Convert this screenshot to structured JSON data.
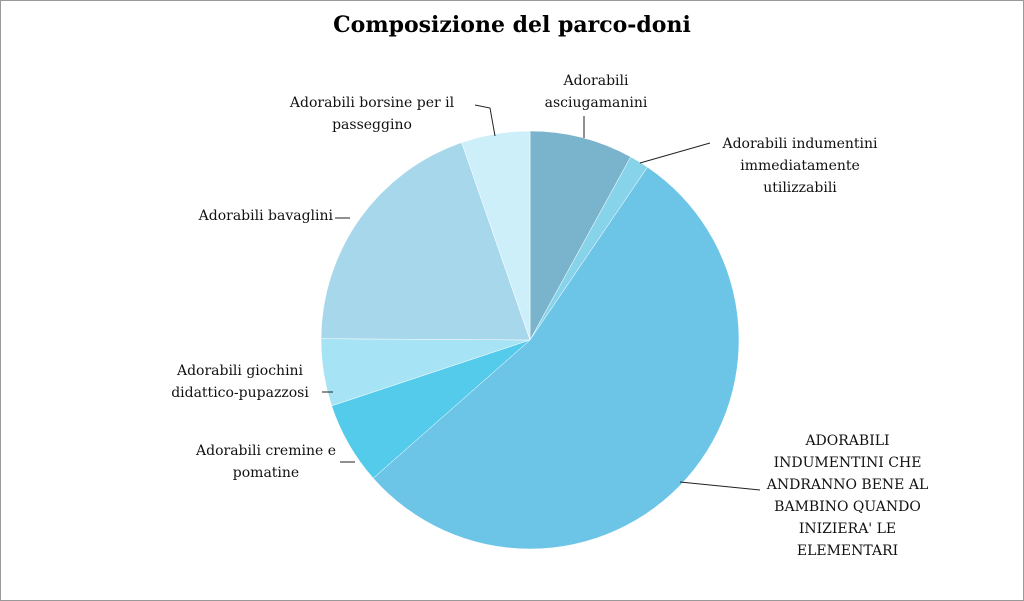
{
  "chart_data": {
    "type": "pie",
    "title": "Composizione del parco-doni",
    "categories": [
      "Adorabili asciugamanini",
      "Adorabili indumentini immediatamente utilizzabili",
      "ADORABILI INDUMENTINI CHE ANDRANNO BENE AL BAMBINO QUANDO INIZIERA' LE ELEMENTARI",
      "Adorabili cremine e pomatine",
      "Adorabili giochini didattico-pupazzosi",
      "Adorabili bavaglini",
      "Adorabili borsine per il passeggino"
    ],
    "values": [
      8,
      1.5,
      54,
      6.4,
      5.2,
      19.6,
      5.3
    ],
    "colors": [
      "#79b4cc",
      "#86d3ea",
      "#6cc4e6",
      "#55cbec",
      "#a6e3f4",
      "#a6d7ea",
      "#cdeffa"
    ]
  }
}
